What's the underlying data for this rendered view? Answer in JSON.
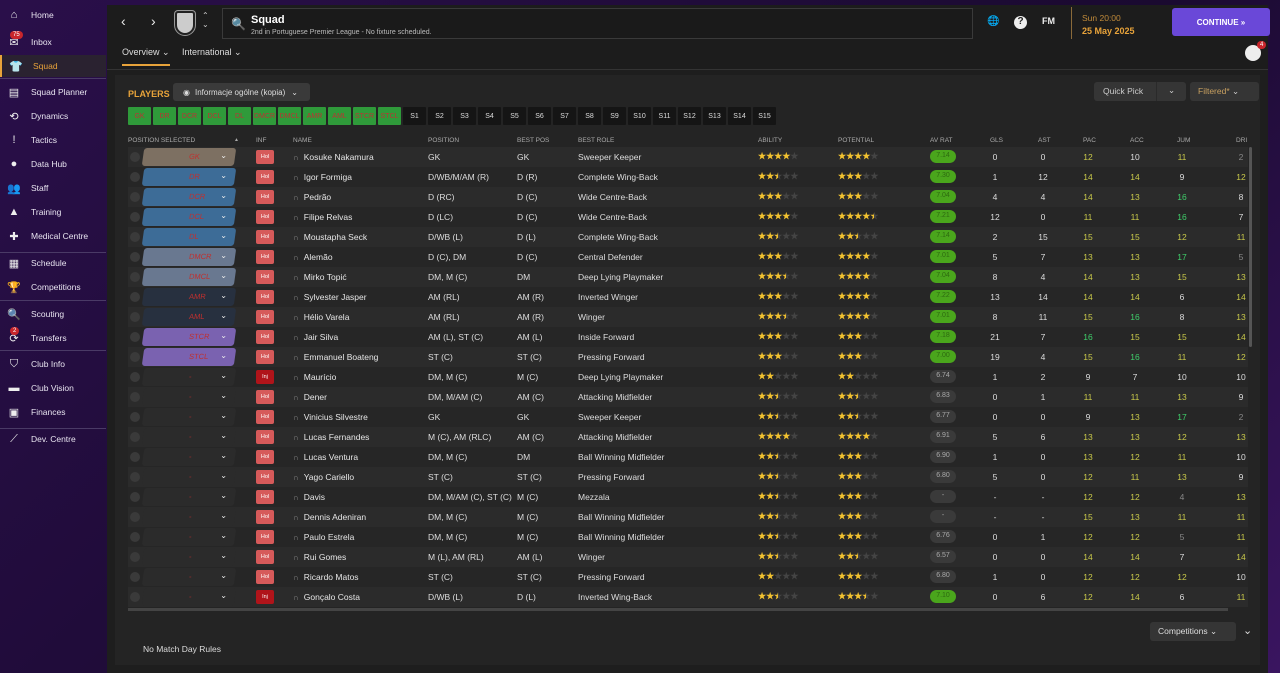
{
  "sidebar": {
    "items": [
      {
        "label": "Home",
        "icon": "home-icon",
        "glyph": "⌂"
      },
      {
        "label": "Inbox",
        "icon": "inbox-icon",
        "glyph": "✉",
        "badge": "75"
      },
      {
        "label": "Squad",
        "icon": "shirt-icon",
        "glyph": "👕",
        "active": true
      },
      {
        "label": "Squad Planner",
        "icon": "clipboard-icon",
        "glyph": "▤"
      },
      {
        "label": "Dynamics",
        "icon": "dynamics-icon",
        "glyph": "⟲"
      },
      {
        "label": "Tactics",
        "icon": "tactics-icon",
        "glyph": "!"
      },
      {
        "label": "Data Hub",
        "icon": "data-hub-icon",
        "glyph": "●"
      },
      {
        "label": "Staff",
        "icon": "staff-icon",
        "glyph": "👥"
      },
      {
        "label": "Training",
        "icon": "training-icon",
        "glyph": "▲"
      },
      {
        "label": "Medical Centre",
        "icon": "medical-icon",
        "glyph": "✚"
      },
      {
        "label": "Schedule",
        "icon": "calendar-icon",
        "glyph": "▦"
      },
      {
        "label": "Competitions",
        "icon": "trophy-icon",
        "glyph": "🏆"
      },
      {
        "label": "Scouting",
        "icon": "search-icon",
        "glyph": "🔍"
      },
      {
        "label": "Transfers",
        "icon": "transfers-icon",
        "glyph": "⟳",
        "badge": "2"
      },
      {
        "label": "Club Info",
        "icon": "shield-icon",
        "glyph": "⛉"
      },
      {
        "label": "Club Vision",
        "icon": "briefcase-icon",
        "glyph": "▬"
      },
      {
        "label": "Finances",
        "icon": "finances-icon",
        "glyph": "▣"
      },
      {
        "label": "Dev. Centre",
        "icon": "dev-centre-icon",
        "glyph": "⟋"
      }
    ]
  },
  "header": {
    "title": "Squad",
    "subtitle": "2nd in Portuguese Premier League - No fixture scheduled.",
    "tabs": [
      "Overview ⌄",
      "International ⌄"
    ],
    "day_time": "Sun 20:00",
    "date": "25 May 2025",
    "continue": "CONTINUE  »",
    "fm": "FM",
    "notif_count": "4"
  },
  "toolbar": {
    "players": "PLAYERS",
    "view": "Informacje ogólne (kopia)",
    "quick_pick": "Quick Pick",
    "filtered": "Filtered*"
  },
  "position_buttons": [
    "GK",
    "DR",
    "DCR",
    "DCL",
    "DL",
    "DMCR",
    "DMCL",
    "AMR",
    "AML",
    "STCR",
    "STCL",
    "S1",
    "S2",
    "S3",
    "S4",
    "S5",
    "S6",
    "S7",
    "S8",
    "S9",
    "S10",
    "S11",
    "S12",
    "S13",
    "S14",
    "S15"
  ],
  "columns": [
    "POSITION SELECTED",
    "INF",
    "NAME",
    "POSITION",
    "BEST POS",
    "BEST ROLE",
    "ABILITY",
    "POTENTIAL",
    "AV RAT",
    "GLS",
    "AST",
    "PAC",
    "ACC",
    "JUM",
    "DRI"
  ],
  "colors": {
    "GK": "#7d7062",
    "DR": "#3d6c97",
    "DCR": "#3d6c97",
    "DCL": "#3d6c97",
    "DL": "#3d6c97",
    "DMCR": "#697890",
    "DMCL": "#697890",
    "AMR": "#27303f",
    "AML": "#27303f",
    "STCR": "#7a62b0",
    "STCL": "#7a62b0",
    "-": "#2b2b2b",
    "Hol": "#d65a5a",
    "Inj": "#b0141a",
    "accent": "#e8a33a"
  },
  "players": [
    [
      "GK",
      "Hol",
      "Kosuke Nakamura",
      "GK",
      "GK",
      "Sweeper Keeper",
      4,
      4,
      "7.14",
      "0",
      "0",
      12,
      10,
      11,
      2
    ],
    [
      "DR",
      "Hol",
      "Igor Formiga",
      "D/WB/M/AM (R)",
      "D (R)",
      "Complete Wing-Back",
      2.5,
      3,
      "7.30",
      "1",
      "12",
      14,
      14,
      9,
      12
    ],
    [
      "DCR",
      "Hol",
      "Pedrão",
      "D (RC)",
      "D (C)",
      "Wide Centre-Back",
      3,
      3,
      "7.04",
      "4",
      "4",
      14,
      13,
      16,
      8
    ],
    [
      "DCL",
      "Hol",
      "Filipe Relvas",
      "D (LC)",
      "D (C)",
      "Wide Centre-Back",
      4,
      4.5,
      "7.21",
      "12",
      "0",
      11,
      11,
      16,
      7
    ],
    [
      "DL",
      "Hol",
      "Moustapha Seck",
      "D/WB (L)",
      "D (L)",
      "Complete Wing-Back",
      2.5,
      2.5,
      "7.14",
      "2",
      "15",
      15,
      15,
      12,
      11
    ],
    [
      "DMCR",
      "Hol",
      "Alemão",
      "D (C), DM",
      "D (C)",
      "Central Defender",
      3,
      4,
      "7.01",
      "5",
      "7",
      13,
      13,
      17,
      5
    ],
    [
      "DMCL",
      "Hol",
      "Mirko Topić",
      "DM, M (C)",
      "DM",
      "Deep Lying Playmaker",
      3.5,
      4,
      "7.04",
      "8",
      "4",
      14,
      13,
      15,
      13
    ],
    [
      "AMR",
      "Hol",
      "Sylvester Jasper",
      "AM (RL)",
      "AM (R)",
      "Inverted Winger",
      3,
      4,
      "7.22",
      "13",
      "14",
      14,
      14,
      6,
      14
    ],
    [
      "AML",
      "Hol",
      "Hélio Varela",
      "AM (RL)",
      "AM (R)",
      "Winger",
      3.5,
      4,
      "7.01",
      "8",
      "11",
      15,
      16,
      8,
      13
    ],
    [
      "STCR",
      "Hol",
      "Jair Silva",
      "AM (L), ST (C)",
      "AM (L)",
      "Inside Forward",
      3,
      3,
      "7.18",
      "21",
      "7",
      16,
      15,
      15,
      14
    ],
    [
      "STCL",
      "Hol",
      "Emmanuel Boateng",
      "ST (C)",
      "ST (C)",
      "Pressing Forward",
      3,
      3,
      "7.00",
      "19",
      "4",
      15,
      16,
      11,
      12
    ],
    [
      "-",
      "Inj",
      "Maurício",
      "DM, M (C)",
      "M (C)",
      "Deep Lying Playmaker",
      2,
      2,
      "6.74",
      "1",
      "2",
      9,
      7,
      10,
      10
    ],
    [
      "-",
      "Hol",
      "Dener",
      "DM, M/AM (C)",
      "AM (C)",
      "Attacking Midfielder",
      2.5,
      2.5,
      "6.83",
      "0",
      "1",
      11,
      11,
      13,
      9
    ],
    [
      "-",
      "Hol",
      "Vinicius Silvestre",
      "GK",
      "GK",
      "Sweeper Keeper",
      2.5,
      2.5,
      "6.77",
      "0",
      "0",
      9,
      13,
      17,
      2
    ],
    [
      "-",
      "Hol",
      "Lucas Fernandes",
      "M (C), AM (RLC)",
      "AM (C)",
      "Attacking Midfielder",
      4,
      4,
      "6.91",
      "5",
      "6",
      13,
      13,
      12,
      13
    ],
    [
      "-",
      "Hol",
      "Lucas Ventura",
      "DM, M (C)",
      "DM",
      "Ball Winning Midfielder",
      2.5,
      3,
      "6.90",
      "1",
      "0",
      13,
      12,
      11,
      10
    ],
    [
      "-",
      "Hol",
      "Yago Cariello",
      "ST (C)",
      "ST (C)",
      "Pressing Forward",
      2.5,
      3,
      "6.80",
      "5",
      "0",
      12,
      11,
      13,
      9
    ],
    [
      "-",
      "Hol",
      "Davis",
      "DM, M/AM (C), ST (C)",
      "M (C)",
      "Mezzala",
      2.5,
      3,
      "-",
      "-",
      "-",
      12,
      12,
      4,
      13
    ],
    [
      "-",
      "Hol",
      "Dennis Adeniran",
      "DM, M (C)",
      "M (C)",
      "Ball Winning Midfielder",
      2.5,
      3,
      "-",
      "-",
      "-",
      15,
      13,
      11,
      11
    ],
    [
      "-",
      "Hol",
      "Paulo Estrela",
      "DM, M (C)",
      "M (C)",
      "Ball Winning Midfielder",
      2.5,
      3,
      "6.76",
      "0",
      "1",
      12,
      12,
      5,
      11
    ],
    [
      "-",
      "Hol",
      "Rui Gomes",
      "M (L), AM (RL)",
      "AM (L)",
      "Winger",
      2.5,
      2.5,
      "6.57",
      "0",
      "0",
      14,
      14,
      7,
      14
    ],
    [
      "-",
      "Hol",
      "Ricardo Matos",
      "ST (C)",
      "ST (C)",
      "Pressing Forward",
      2,
      3,
      "6.80",
      "1",
      "0",
      12,
      12,
      12,
      10
    ],
    [
      "-",
      "Inj",
      "Gonçalo Costa",
      "D/WB (L)",
      "D (L)",
      "Inverted Wing-Back",
      2.5,
      3.5,
      "7.10",
      "0",
      "6",
      12,
      14,
      6,
      11
    ]
  ],
  "footer": {
    "rules": "No Match Day Rules",
    "competitions": "Competitions"
  }
}
